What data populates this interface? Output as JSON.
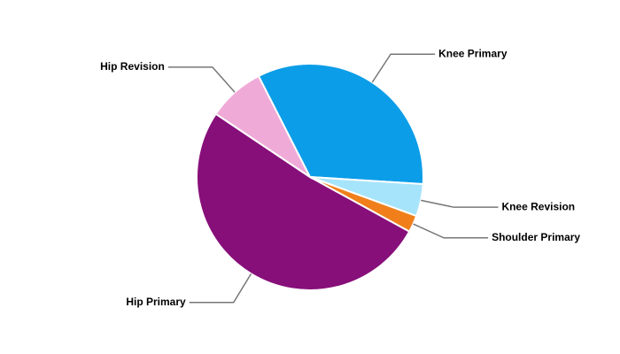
{
  "chart_data": {
    "type": "pie",
    "categories": [
      "Knee Primary",
      "Knee Revision",
      "Shoulder Primary",
      "Hip Primary",
      "Hip Revision"
    ],
    "values": [
      33.5,
      4.6,
      2.4,
      51.4,
      8.1
    ],
    "colors": [
      "#0b9de8",
      "#a6e4fb",
      "#f07f1b",
      "#870f7a",
      "#f0aad8"
    ]
  }
}
